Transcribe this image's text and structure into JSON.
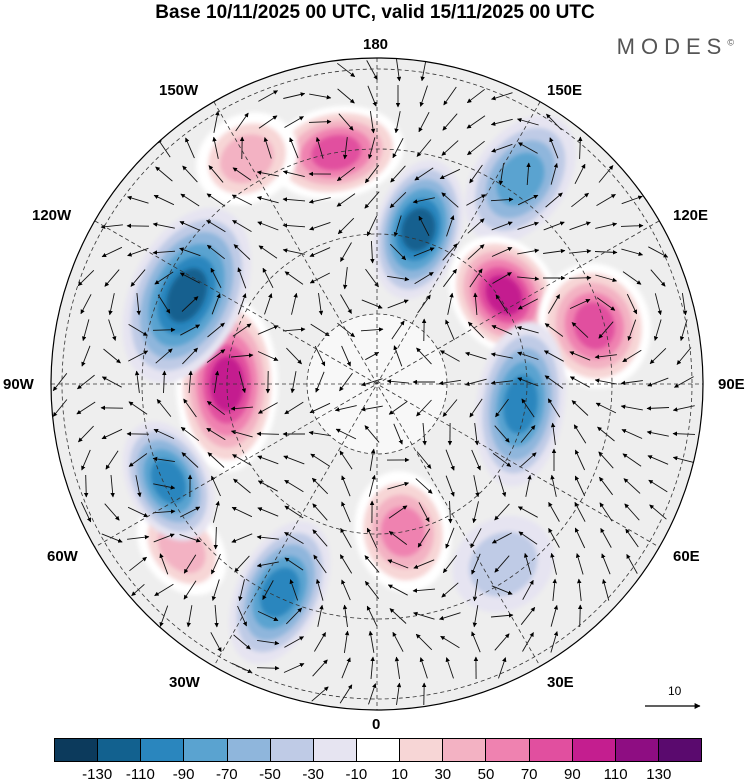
{
  "header": {
    "title": "Base 10/11/2025 00 UTC, valid 15/11/2025 00 UTC",
    "brand": "MODES",
    "brand_mark": "©"
  },
  "map": {
    "longitude_labels": {
      "top": "180",
      "top_left": "150W",
      "top_right": "150E",
      "upper_left": "120W",
      "upper_right": "120E",
      "left": "90W",
      "right": "90E",
      "lower_left": "60W",
      "lower_right": "60E",
      "bottom_left": "30W",
      "bottom_right": "30E",
      "bottom": "0"
    },
    "anomaly_centers": [
      {
        "sign": "positive",
        "value": 110,
        "bearing_deg": 270
      },
      {
        "sign": "positive",
        "value": 70,
        "bearing_deg": 170
      },
      {
        "sign": "negative",
        "value": -90,
        "bearing_deg": 205
      },
      {
        "sign": "positive",
        "value": 50,
        "bearing_deg": 230
      },
      {
        "sign": "negative",
        "value": -90,
        "bearing_deg": 245
      },
      {
        "sign": "negative",
        "value": -110,
        "bearing_deg": 295
      },
      {
        "sign": "positive",
        "value": 90,
        "bearing_deg": 350
      },
      {
        "sign": "negative",
        "value": -110,
        "bearing_deg": 15
      },
      {
        "sign": "negative",
        "value": -70,
        "bearing_deg": 35
      },
      {
        "sign": "positive",
        "value": 110,
        "bearing_deg": 55
      },
      {
        "sign": "positive",
        "value": 90,
        "bearing_deg": 75
      },
      {
        "sign": "negative",
        "value": -90,
        "bearing_deg": 98
      },
      {
        "sign": "negative",
        "value": -30,
        "bearing_deg": 145
      },
      {
        "sign": "positive",
        "value": 50,
        "bearing_deg": 330
      }
    ]
  },
  "vector_scale": {
    "label": "10"
  },
  "colorbar": {
    "colors": [
      "#0c3a5c",
      "#12618f",
      "#2a86be",
      "#5aa3d0",
      "#8fb6dc",
      "#bfcbe6",
      "#e6e4f1",
      "#ffffff",
      "#f7d6d6",
      "#f3b2c3",
      "#ef82b0",
      "#e14f9f",
      "#c41e8f",
      "#8e0d82",
      "#5a0a6e"
    ],
    "ticks": [
      "-130",
      "-110",
      "-90",
      "-70",
      "-50",
      "-30",
      "-10",
      "10",
      "30",
      "50",
      "70",
      "90",
      "110",
      "130"
    ]
  }
}
